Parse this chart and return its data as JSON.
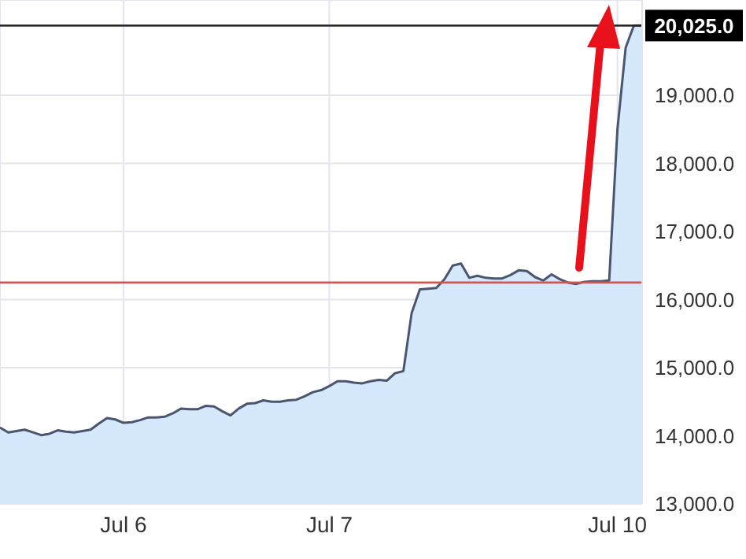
{
  "chart_data": {
    "type": "area",
    "categories": [
      null,
      null,
      null,
      null,
      null,
      null,
      null,
      null,
      null,
      null,
      null,
      null,
      null,
      null,
      null,
      "Jul 6",
      null,
      null,
      null,
      null,
      null,
      null,
      null,
      null,
      null,
      null,
      null,
      null,
      null,
      null,
      null,
      null,
      null,
      null,
      null,
      null,
      null,
      null,
      null,
      null,
      "Jul 7",
      null,
      null,
      null,
      null,
      null,
      null,
      null,
      null,
      null,
      null,
      null,
      null,
      null,
      null,
      null,
      null,
      null,
      null,
      null,
      null,
      null,
      null,
      null,
      null,
      null,
      null,
      null,
      null,
      null,
      null,
      null,
      null,
      null,
      null,
      "Jul 10",
      null,
      null,
      null
    ],
    "series": [
      {
        "color": "#4a5570",
        "values": [
          14120,
          14050,
          14070,
          14090,
          14050,
          14010,
          14030,
          14080,
          14060,
          14050,
          14070,
          14090,
          14180,
          14260,
          14240,
          14190,
          14200,
          14230,
          14270,
          14270,
          14280,
          14330,
          14400,
          14390,
          14390,
          14440,
          14430,
          14360,
          14300,
          14400,
          14470,
          14480,
          14520,
          14500,
          14500,
          14520,
          14530,
          14580,
          14640,
          14670,
          14730,
          14800,
          14800,
          14780,
          14770,
          14800,
          14820,
          14810,
          14920,
          14950,
          15800,
          16150,
          16160,
          16170,
          16300,
          16500,
          16530,
          16320,
          16350,
          16320,
          16310,
          16310,
          16360,
          16430,
          16420,
          16330,
          16280,
          16370,
          16300,
          16250,
          16230,
          16260,
          16270,
          16270,
          16280,
          18500,
          19700,
          20025,
          20025
        ]
      }
    ],
    "ylim": [
      13000,
      20400
    ],
    "yticks": [
      {
        "value": 13000,
        "label": "13,000.0"
      },
      {
        "value": 14000,
        "label": "14,000.0"
      },
      {
        "value": 15000,
        "label": "15,000.0"
      },
      {
        "value": 16000,
        "label": "16,000.0"
      },
      {
        "value": 17000,
        "label": "17,000.0"
      },
      {
        "value": 18000,
        "label": "18,000.0"
      },
      {
        "value": 19000,
        "label": "19,000.0"
      }
    ],
    "ref_lines": [
      {
        "axis": "y",
        "value": 16250,
        "label": null,
        "color": "#d9534f"
      },
      {
        "axis": "y",
        "value": 20025,
        "label": "20,025.0",
        "color": "#222222"
      }
    ],
    "grid": true,
    "marker": "none"
  }
}
